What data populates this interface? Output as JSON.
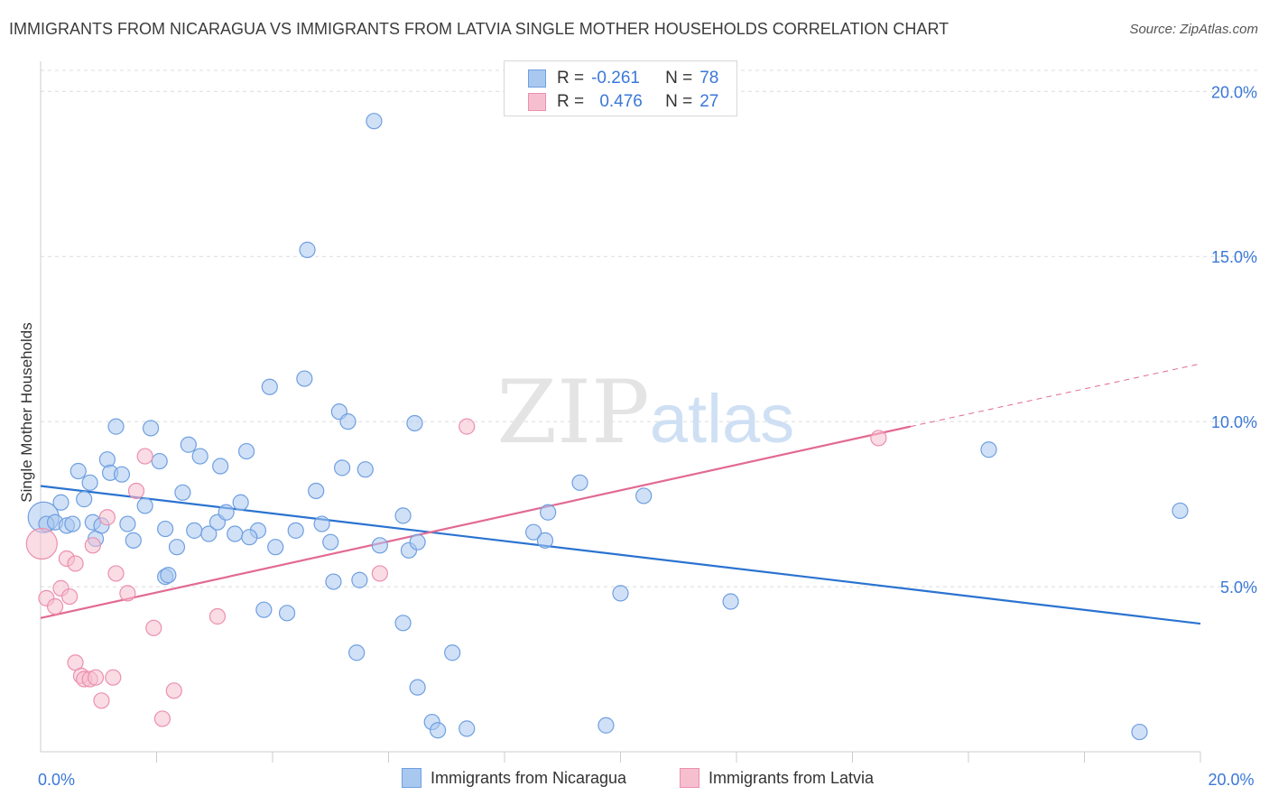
{
  "header": {
    "title": "IMMIGRANTS FROM NICARAGUA VS IMMIGRANTS FROM LATVIA SINGLE MOTHER HOUSEHOLDS CORRELATION CHART",
    "source": "Source: ZipAtlas.com"
  },
  "watermark": {
    "zip": "ZIP",
    "atlas": "atlas"
  },
  "legend_top": {
    "rows": [
      {
        "r_label": "R =",
        "r_value": "-0.261",
        "n_label": "N =",
        "n_value": "78"
      },
      {
        "r_label": "R =",
        "r_value": "0.476",
        "n_label": "N =",
        "n_value": "27"
      }
    ]
  },
  "legend_bottom": {
    "items": [
      "Immigrants from Nicaragua",
      "Immigrants from Latvia"
    ]
  },
  "colors": {
    "nicaragua_fill": "#a9c8f0",
    "nicaragua_stroke": "#6f9fe0",
    "nicaragua_line": "#2a73d0",
    "latvia_fill": "#f6bfd0",
    "latvia_stroke": "#ec8fae",
    "latvia_line": "#e26a92",
    "tick_label": "#3b78d8",
    "grid": "#dcdcdc"
  },
  "chart_data": {
    "type": "scatter",
    "title": "IMMIGRANTS FROM NICARAGUA VS IMMIGRANTS FROM LATVIA SINGLE MOTHER HOUSEHOLDS CORRELATION CHART",
    "xlabel": "",
    "ylabel": "Single Mother Households",
    "xlim": [
      0,
      20
    ],
    "ylim": [
      0,
      20.8
    ],
    "x_tick_labels": [
      {
        "value": 0,
        "label": "0.0%"
      },
      {
        "value": 20,
        "label": "20.0%"
      }
    ],
    "y_tick_labels": [
      {
        "value": 5,
        "label": "5.0%"
      },
      {
        "value": 10,
        "label": "10.0%"
      },
      {
        "value": 15,
        "label": "15.0%"
      },
      {
        "value": 20,
        "label": "20.0%"
      }
    ],
    "x_minor_ticks": [
      2,
      4,
      6,
      8,
      10,
      12,
      14,
      16,
      18,
      20
    ],
    "series": [
      {
        "name": "Immigrants from Nicaragua",
        "r": -0.261,
        "n": 78,
        "trend": {
          "x": [
            0,
            20
          ],
          "y": [
            8.05,
            3.88
          ],
          "style": "solid"
        },
        "points": [
          {
            "x": 0.05,
            "y": 7.1,
            "big": true
          },
          {
            "x": 0.1,
            "y": 6.9
          },
          {
            "x": 0.25,
            "y": 6.95
          },
          {
            "x": 0.35,
            "y": 7.55
          },
          {
            "x": 0.45,
            "y": 6.85
          },
          {
            "x": 0.55,
            "y": 6.9
          },
          {
            "x": 0.65,
            "y": 8.5
          },
          {
            "x": 0.75,
            "y": 7.65
          },
          {
            "x": 0.85,
            "y": 8.15
          },
          {
            "x": 0.9,
            "y": 6.95
          },
          {
            "x": 0.95,
            "y": 6.45
          },
          {
            "x": 1.05,
            "y": 6.85
          },
          {
            "x": 1.15,
            "y": 8.85
          },
          {
            "x": 1.2,
            "y": 8.45
          },
          {
            "x": 1.3,
            "y": 9.85
          },
          {
            "x": 1.4,
            "y": 8.4
          },
          {
            "x": 1.5,
            "y": 6.9
          },
          {
            "x": 1.6,
            "y": 6.4
          },
          {
            "x": 1.8,
            "y": 7.45
          },
          {
            "x": 1.9,
            "y": 9.8
          },
          {
            "x": 2.05,
            "y": 8.8
          },
          {
            "x": 2.15,
            "y": 6.75
          },
          {
            "x": 2.35,
            "y": 6.2
          },
          {
            "x": 2.45,
            "y": 7.85
          },
          {
            "x": 2.55,
            "y": 9.3
          },
          {
            "x": 2.65,
            "y": 6.7
          },
          {
            "x": 2.75,
            "y": 8.95
          },
          {
            "x": 2.9,
            "y": 6.6
          },
          {
            "x": 3.05,
            "y": 6.95
          },
          {
            "x": 3.1,
            "y": 8.65
          },
          {
            "x": 3.2,
            "y": 7.25
          },
          {
            "x": 3.35,
            "y": 6.6
          },
          {
            "x": 3.45,
            "y": 7.55
          },
          {
            "x": 3.55,
            "y": 9.1
          },
          {
            "x": 3.75,
            "y": 6.7
          },
          {
            "x": 3.85,
            "y": 4.3
          },
          {
            "x": 3.95,
            "y": 11.05
          },
          {
            "x": 4.05,
            "y": 6.2
          },
          {
            "x": 4.25,
            "y": 4.2
          },
          {
            "x": 4.4,
            "y": 6.7
          },
          {
            "x": 4.55,
            "y": 11.3
          },
          {
            "x": 4.6,
            "y": 15.2
          },
          {
            "x": 4.75,
            "y": 7.9
          },
          {
            "x": 4.85,
            "y": 6.9
          },
          {
            "x": 5.0,
            "y": 6.35
          },
          {
            "x": 5.05,
            "y": 5.15
          },
          {
            "x": 5.15,
            "y": 10.3
          },
          {
            "x": 5.2,
            "y": 8.6
          },
          {
            "x": 5.3,
            "y": 10.0
          },
          {
            "x": 5.45,
            "y": 3.0
          },
          {
            "x": 5.5,
            "y": 5.2
          },
          {
            "x": 5.6,
            "y": 8.55
          },
          {
            "x": 5.75,
            "y": 19.1
          },
          {
            "x": 5.85,
            "y": 6.25
          },
          {
            "x": 6.25,
            "y": 3.9
          },
          {
            "x": 6.25,
            "y": 7.15
          },
          {
            "x": 6.35,
            "y": 6.1
          },
          {
            "x": 6.5,
            "y": 6.35
          },
          {
            "x": 6.45,
            "y": 9.95
          },
          {
            "x": 6.5,
            "y": 1.95
          },
          {
            "x": 6.75,
            "y": 0.9
          },
          {
            "x": 6.85,
            "y": 0.65
          },
          {
            "x": 7.1,
            "y": 3.0
          },
          {
            "x": 7.35,
            "y": 0.7
          },
          {
            "x": 8.5,
            "y": 6.65
          },
          {
            "x": 8.7,
            "y": 6.4
          },
          {
            "x": 8.75,
            "y": 7.25
          },
          {
            "x": 9.3,
            "y": 8.15
          },
          {
            "x": 9.75,
            "y": 0.8
          },
          {
            "x": 10.0,
            "y": 4.8
          },
          {
            "x": 10.4,
            "y": 7.75
          },
          {
            "x": 11.9,
            "y": 4.55
          },
          {
            "x": 16.35,
            "y": 9.15
          },
          {
            "x": 18.95,
            "y": 0.6
          },
          {
            "x": 19.65,
            "y": 7.3
          },
          {
            "x": 2.15,
            "y": 5.3
          },
          {
            "x": 2.2,
            "y": 5.35
          },
          {
            "x": 3.6,
            "y": 6.5
          }
        ]
      },
      {
        "name": "Immigrants from Latvia",
        "r": 0.476,
        "n": 27,
        "trend": {
          "x": [
            0,
            15.0
          ],
          "y": [
            4.05,
            9.85
          ],
          "style": "solid",
          "extension": {
            "x": [
              15.0,
              20.0
            ],
            "y": [
              9.85,
              11.75
            ],
            "style": "dashed"
          }
        },
        "points": [
          {
            "x": 0.02,
            "y": 6.3,
            "big": true
          },
          {
            "x": 0.1,
            "y": 4.65
          },
          {
            "x": 0.25,
            "y": 4.4
          },
          {
            "x": 0.35,
            "y": 4.95
          },
          {
            "x": 0.45,
            "y": 5.85
          },
          {
            "x": 0.5,
            "y": 4.7
          },
          {
            "x": 0.6,
            "y": 5.7
          },
          {
            "x": 0.6,
            "y": 2.7
          },
          {
            "x": 0.7,
            "y": 2.3
          },
          {
            "x": 0.75,
            "y": 2.2
          },
          {
            "x": 0.85,
            "y": 2.2
          },
          {
            "x": 0.9,
            "y": 6.25
          },
          {
            "x": 0.95,
            "y": 2.25
          },
          {
            "x": 1.05,
            "y": 1.55
          },
          {
            "x": 1.15,
            "y": 7.1
          },
          {
            "x": 1.25,
            "y": 2.25
          },
          {
            "x": 1.3,
            "y": 5.4
          },
          {
            "x": 1.5,
            "y": 4.8
          },
          {
            "x": 1.65,
            "y": 7.9
          },
          {
            "x": 1.8,
            "y": 8.95
          },
          {
            "x": 1.95,
            "y": 3.75
          },
          {
            "x": 2.1,
            "y": 1.0
          },
          {
            "x": 2.3,
            "y": 1.85
          },
          {
            "x": 3.05,
            "y": 4.1
          },
          {
            "x": 5.85,
            "y": 5.4
          },
          {
            "x": 7.35,
            "y": 9.85
          },
          {
            "x": 14.45,
            "y": 9.5
          }
        ]
      }
    ]
  }
}
